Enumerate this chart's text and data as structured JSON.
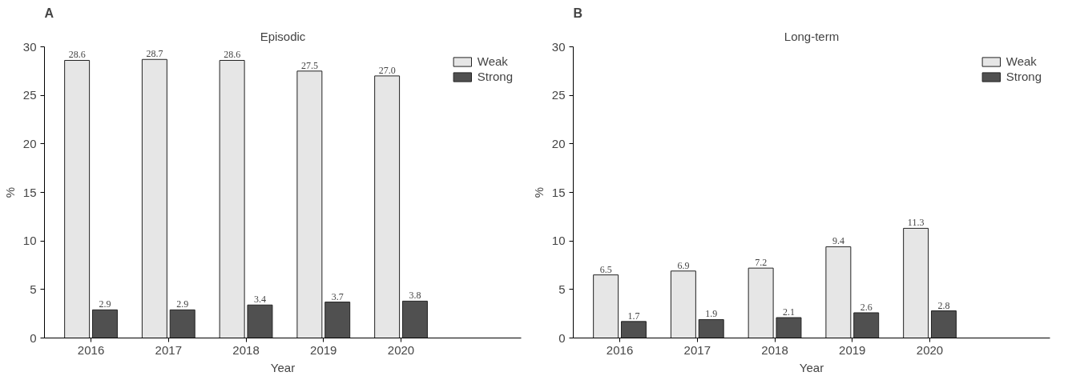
{
  "chart_data": [
    {
      "type": "bar",
      "title": "Episodic",
      "annotations": [
        "A"
      ],
      "xlabel": "Year",
      "ylabel": "%",
      "categories": [
        "2016",
        "2017",
        "2018",
        "2019",
        "2020"
      ],
      "ylim": [
        0,
        30
      ],
      "yticks": [
        0,
        5,
        10,
        15,
        20,
        25,
        30
      ],
      "grid": false,
      "legend": "top right",
      "series": [
        {
          "name": "Weak",
          "color": "#e6e6e6",
          "values": [
            28.6,
            28.7,
            28.6,
            27.5,
            27.0
          ],
          "value_labels": [
            "28.6",
            "28.7",
            "28.6",
            "27.5",
            "27.0"
          ]
        },
        {
          "name": "Strong",
          "color": "#505050",
          "values": [
            2.9,
            2.9,
            3.4,
            3.7,
            3.8
          ],
          "value_labels": [
            "2.9",
            "2.9",
            "3.4",
            "3.7",
            "3.8"
          ]
        }
      ]
    },
    {
      "type": "bar",
      "title": "Long-term",
      "annotations": [
        "B"
      ],
      "xlabel": "Year",
      "ylabel": "%",
      "categories": [
        "2016",
        "2017",
        "2018",
        "2019",
        "2020"
      ],
      "ylim": [
        0,
        30
      ],
      "yticks": [
        0,
        5,
        10,
        15,
        20,
        25,
        30
      ],
      "grid": false,
      "legend": "top right",
      "series": [
        {
          "name": "Weak",
          "color": "#e6e6e6",
          "values": [
            6.5,
            6.9,
            7.2,
            9.4,
            11.3
          ],
          "value_labels": [
            "6.5",
            "6.9",
            "7.2",
            "9.4",
            "11.3"
          ]
        },
        {
          "name": "Strong",
          "color": "#505050",
          "values": [
            1.7,
            1.9,
            2.1,
            2.6,
            2.8
          ],
          "value_labels": [
            "1.7",
            "1.9",
            "2.1",
            "2.6",
            "2.8"
          ]
        }
      ]
    }
  ]
}
